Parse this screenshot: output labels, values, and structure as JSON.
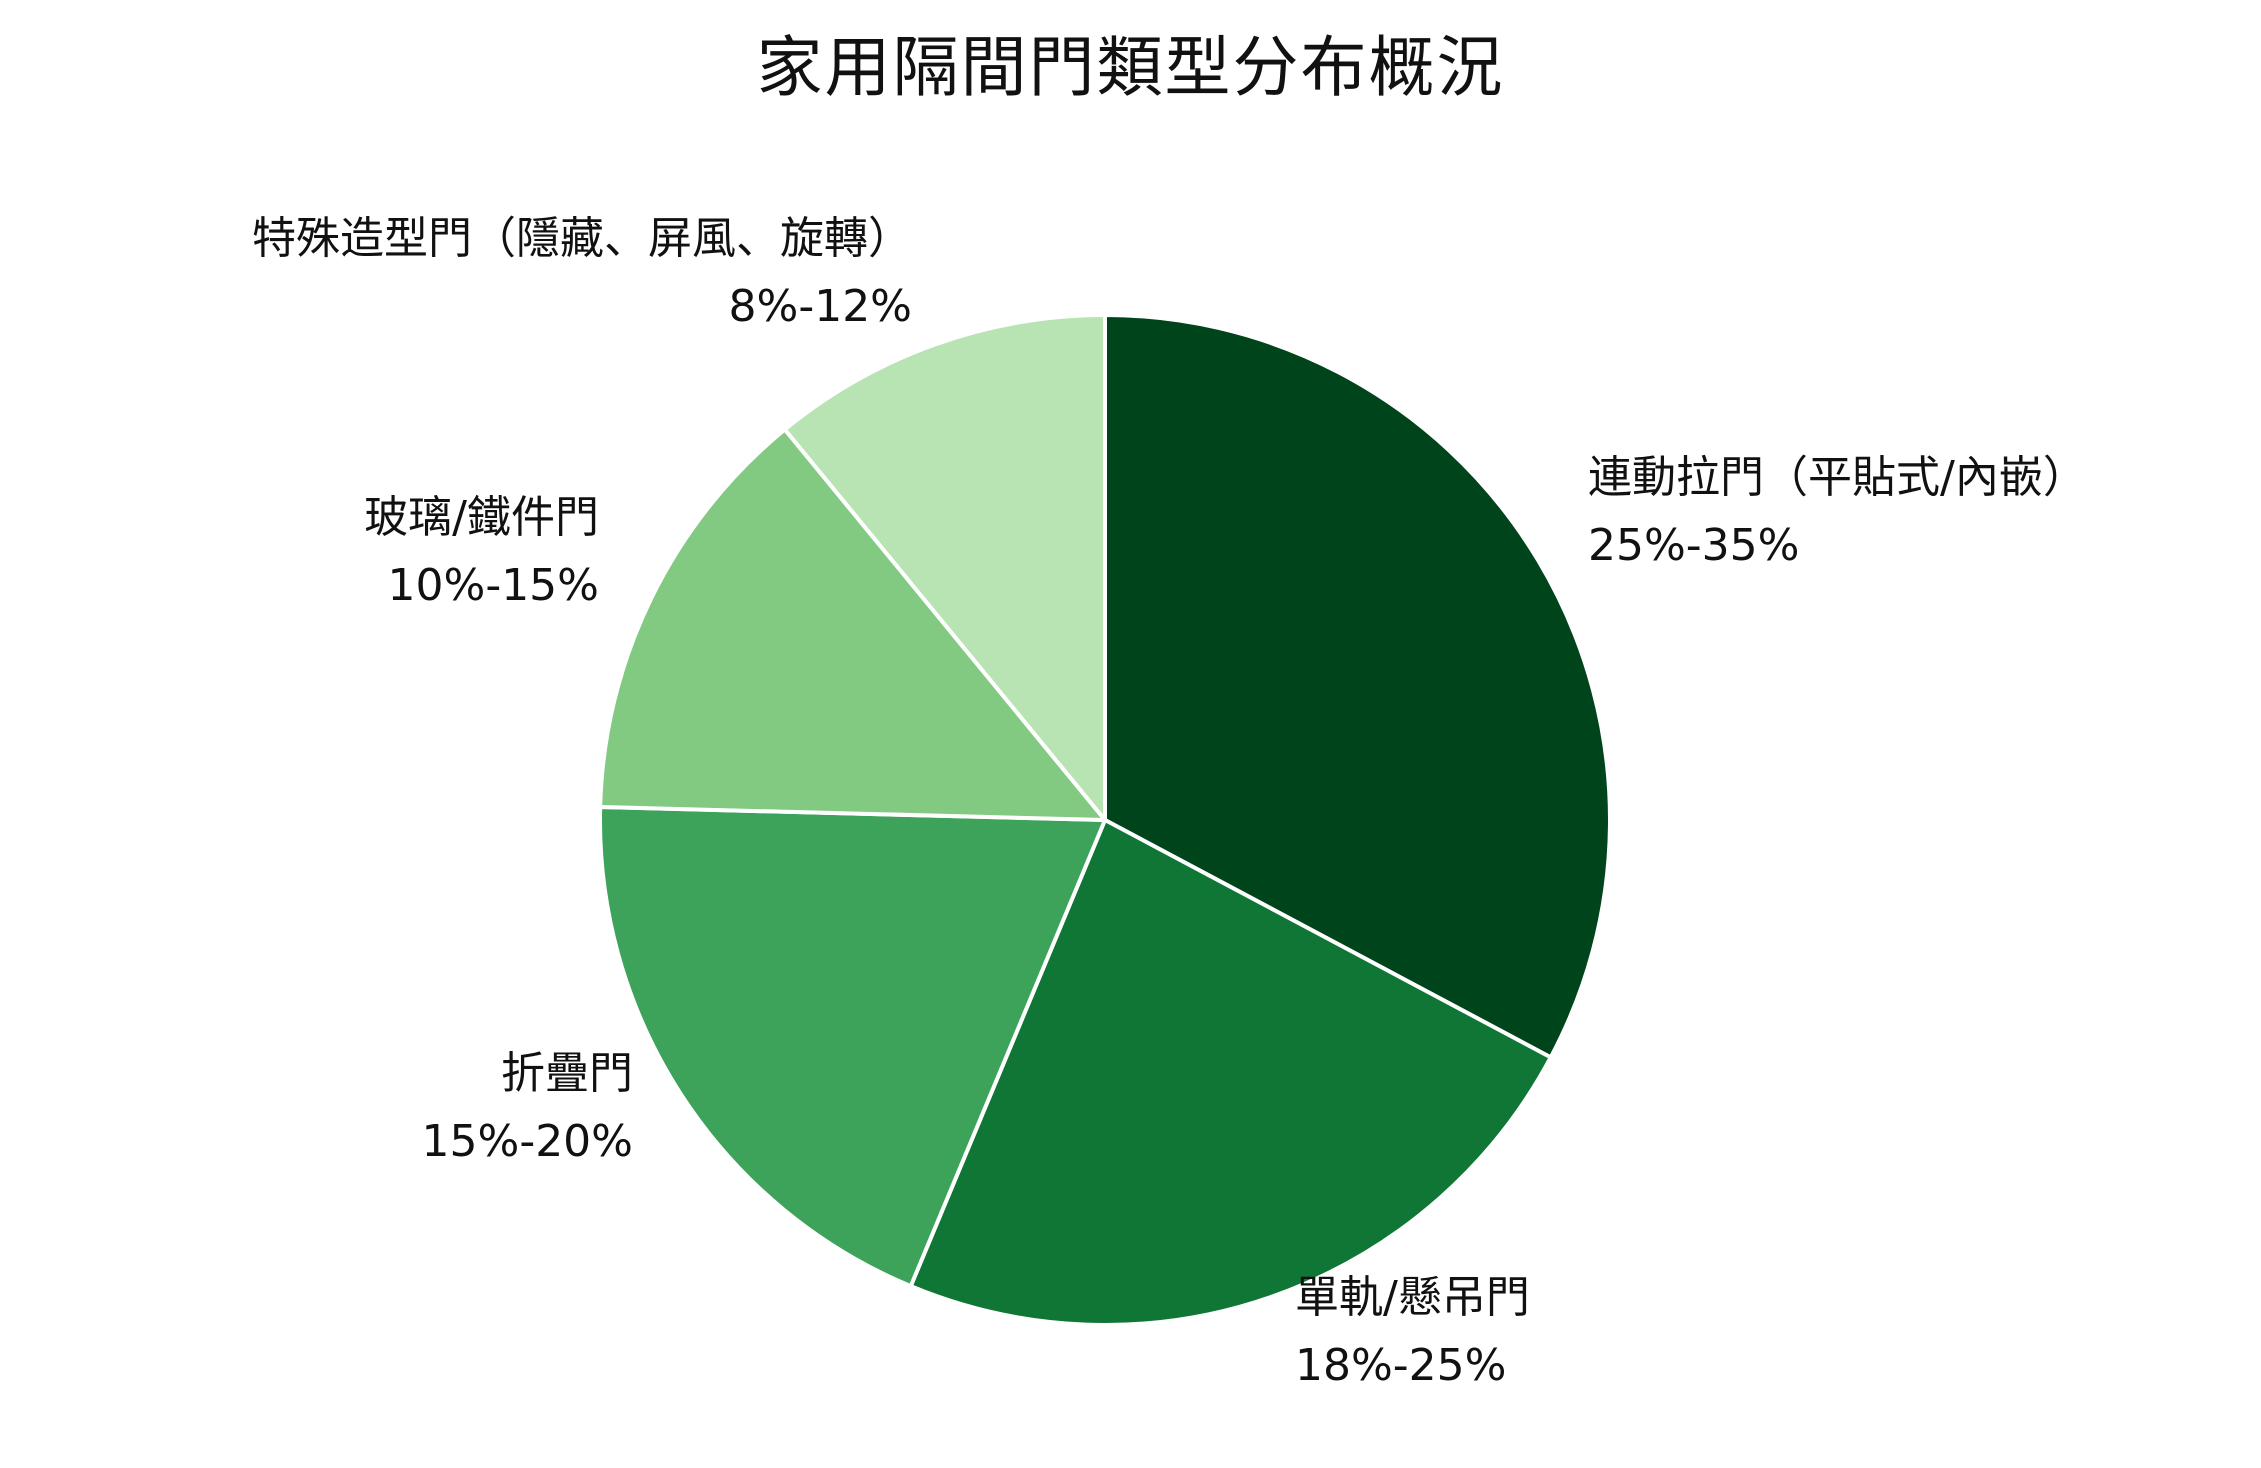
{
  "chart_data": {
    "type": "pie",
    "title": "家用隔間門類型分布概況",
    "slices": [
      {
        "name": "連動拉門（平貼式/內嵌）",
        "range_label": "25%-35%",
        "value": 30,
        "color": "#00441b"
      },
      {
        "name": "單軌/懸吊門",
        "range_label": "18%-25%",
        "value": 21.5,
        "color": "#0f7635"
      },
      {
        "name": "折疊門",
        "range_label": "15%-20%",
        "value": 17.5,
        "color": "#3da35a"
      },
      {
        "name": "玻璃/鐵件門",
        "range_label": "10%-15%",
        "value": 12.5,
        "color": "#82c982"
      },
      {
        "name": "特殊造型門（隱藏、屏風、旋轉）",
        "range_label": "8%-12%",
        "value": 10,
        "color": "#b8e3b2"
      }
    ],
    "start_angle": "12 o'clock",
    "direction": "clockwise",
    "legend": "none"
  }
}
